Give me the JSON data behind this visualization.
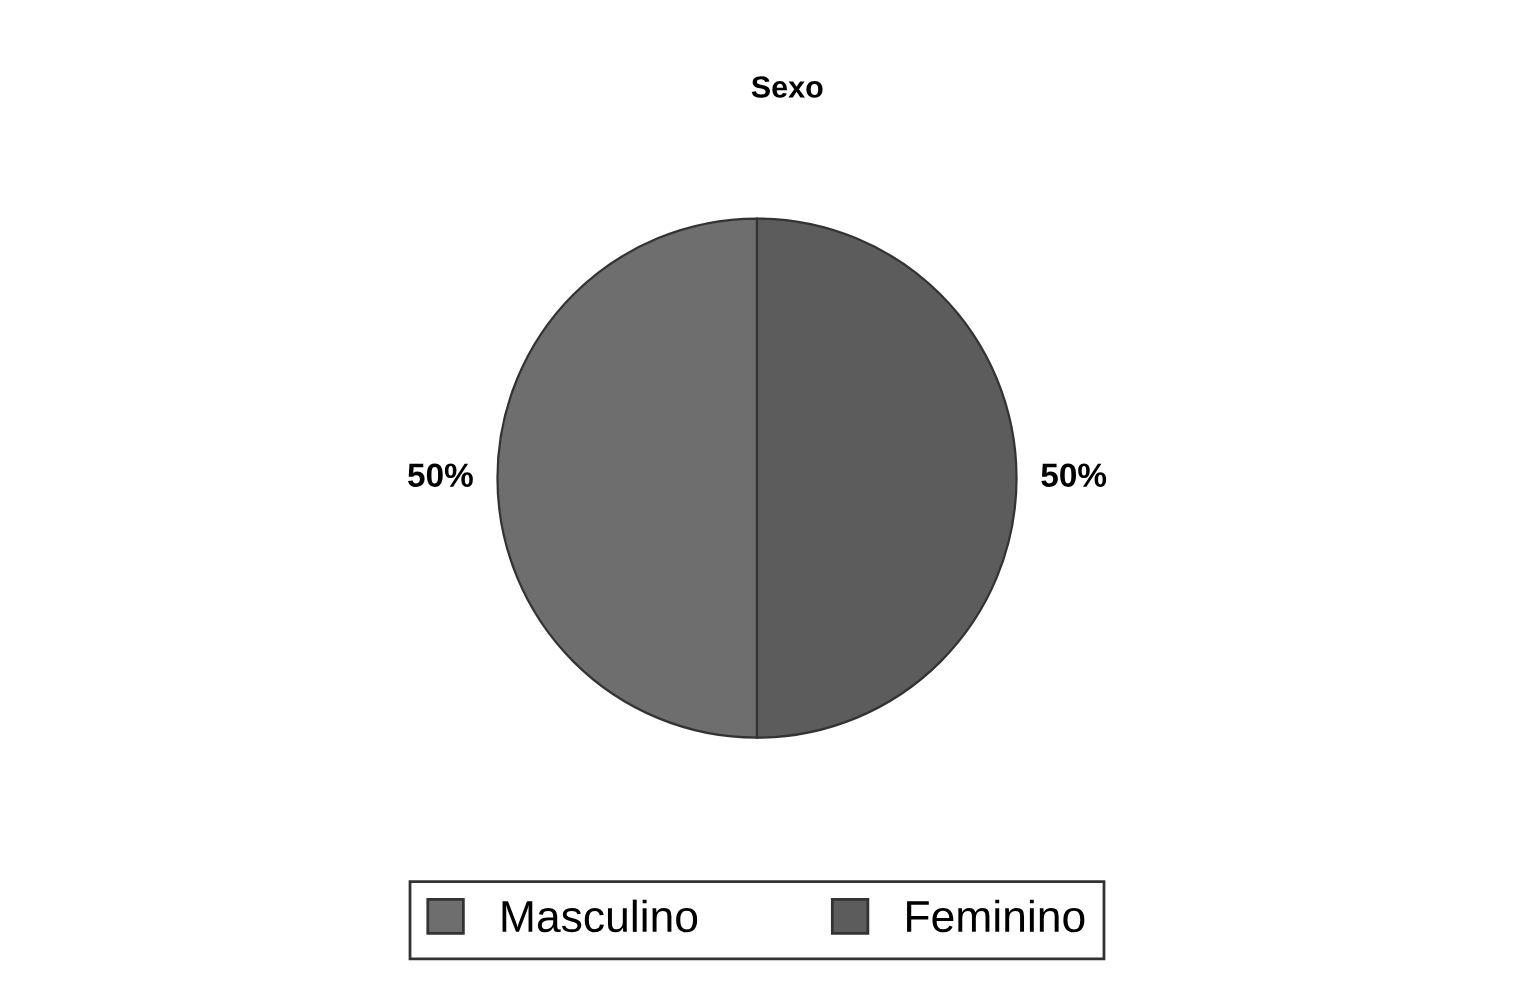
{
  "chart_data": {
    "type": "pie",
    "title": "Sexo",
    "categories": [
      "Masculino",
      "Feminino"
    ],
    "values": [
      50,
      50
    ],
    "colors": [
      "#6e6e6e",
      "#5c5c5c"
    ],
    "value_labels": [
      "50%",
      "50%"
    ],
    "legend": "bottom"
  }
}
